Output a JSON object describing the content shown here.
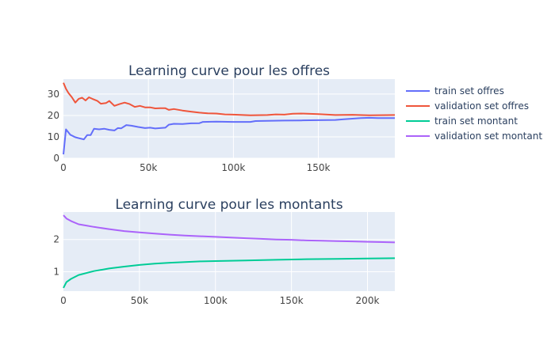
{
  "chart_data": [
    {
      "type": "line",
      "title": "Learning curve pour les offres",
      "xlabel": "",
      "ylabel": "",
      "xlim": [
        0,
        195000
      ],
      "ylim": [
        0,
        37
      ],
      "grid": true,
      "x_ticks": [
        {
          "value": 0,
          "label": "0"
        },
        {
          "value": 50000,
          "label": "50k"
        },
        {
          "value": 100000,
          "label": "100k"
        },
        {
          "value": 150000,
          "label": "150k"
        }
      ],
      "y_ticks": [
        {
          "value": 0,
          "label": "0"
        },
        {
          "value": 10,
          "label": "10"
        },
        {
          "value": 20,
          "label": "20"
        },
        {
          "value": 30,
          "label": "30"
        }
      ],
      "series": [
        {
          "name": "train set offres",
          "color": "#636efa",
          "x": [
            0,
            1500,
            4000,
            7000,
            10000,
            12000,
            14000,
            16000,
            18000,
            21000,
            24000,
            27000,
            30000,
            32000,
            34000,
            37000,
            40000,
            44000,
            48000,
            51000,
            54000,
            57000,
            60000,
            62000,
            65000,
            70000,
            75000,
            80000,
            82000,
            90000,
            100000,
            110000,
            113000,
            120000,
            130000,
            140000,
            150000,
            160000,
            165000,
            170000,
            175000,
            180000,
            185000,
            195000
          ],
          "values": [
            1.8,
            13.5,
            11,
            9.8,
            9.2,
            8.8,
            10.8,
            10.8,
            13.8,
            13.5,
            13.8,
            13.3,
            13.0,
            14.1,
            14.0,
            15.5,
            15.2,
            14.6,
            14.1,
            14.3,
            13.9,
            14.1,
            14.3,
            15.7,
            16.1,
            16.0,
            16.3,
            16.4,
            17.0,
            17.1,
            17.0,
            17.0,
            17.4,
            17.5,
            17.6,
            17.7,
            17.8,
            17.9,
            18.2,
            18.5,
            18.8,
            18.9,
            18.8,
            18.8
          ]
        },
        {
          "name": "validation set offres",
          "color": "#ef553b",
          "x": [
            0,
            1500,
            3000,
            5000,
            7000,
            9000,
            11000,
            13000,
            15000,
            17000,
            20000,
            22000,
            25000,
            27000,
            30000,
            33000,
            36000,
            39000,
            42000,
            45000,
            48000,
            51000,
            54000,
            57000,
            60000,
            62000,
            65000,
            70000,
            75000,
            80000,
            85000,
            90000,
            95000,
            100000,
            110000,
            120000,
            125000,
            130000,
            135000,
            140000,
            150000,
            160000,
            170000,
            180000,
            195000
          ],
          "values": [
            35.3,
            32.5,
            30.5,
            28.5,
            26.0,
            27.8,
            28.3,
            27.0,
            28.5,
            27.8,
            26.8,
            25.5,
            25.8,
            26.8,
            24.5,
            25.3,
            26.0,
            25.3,
            24.0,
            24.5,
            23.8,
            23.8,
            23.3,
            23.4,
            23.4,
            22.6,
            23.0,
            22.3,
            21.8,
            21.3,
            21.0,
            20.9,
            20.5,
            20.4,
            20.1,
            20.2,
            20.5,
            20.4,
            20.8,
            20.9,
            20.6,
            20.2,
            20.3,
            20.1,
            20.2
          ]
        }
      ]
    },
    {
      "type": "line",
      "title": "Learning curve pour les montants",
      "xlabel": "",
      "ylabel": "",
      "xlim": [
        0,
        218000
      ],
      "ylim": [
        0.4,
        2.85
      ],
      "grid": true,
      "x_ticks": [
        {
          "value": 0,
          "label": "0"
        },
        {
          "value": 50000,
          "label": "50k"
        },
        {
          "value": 100000,
          "label": "100k"
        },
        {
          "value": 150000,
          "label": "150k"
        },
        {
          "value": 200000,
          "label": "200k"
        }
      ],
      "y_ticks": [
        {
          "value": 1,
          "label": "1"
        },
        {
          "value": 2,
          "label": "2"
        }
      ],
      "series": [
        {
          "name": "train set montant",
          "color": "#00cc96",
          "x": [
            0,
            2000,
            5000,
            10000,
            20000,
            30000,
            40000,
            50000,
            60000,
            70000,
            80000,
            90000,
            100000,
            120000,
            140000,
            160000,
            180000,
            200000,
            218000
          ],
          "values": [
            0.5,
            0.68,
            0.78,
            0.9,
            1.02,
            1.1,
            1.16,
            1.21,
            1.25,
            1.28,
            1.3,
            1.32,
            1.33,
            1.35,
            1.37,
            1.39,
            1.4,
            1.41,
            1.42
          ]
        },
        {
          "name": "validation set montant",
          "color": "#ab63fa",
          "x": [
            0,
            2000,
            5000,
            10000,
            15000,
            20000,
            30000,
            40000,
            50000,
            60000,
            70000,
            80000,
            90000,
            100000,
            110000,
            120000,
            130000,
            140000,
            150000,
            160000,
            170000,
            180000,
            190000,
            200000,
            210000,
            218000
          ],
          "values": [
            2.75,
            2.65,
            2.57,
            2.47,
            2.43,
            2.39,
            2.32,
            2.26,
            2.22,
            2.18,
            2.15,
            2.12,
            2.1,
            2.08,
            2.06,
            2.04,
            2.02,
            2.0,
            1.99,
            1.97,
            1.96,
            1.95,
            1.94,
            1.93,
            1.92,
            1.91
          ]
        }
      ]
    }
  ],
  "legend": {
    "placement": "top-right",
    "items": [
      {
        "label": "train set offres",
        "color": "#636efa"
      },
      {
        "label": "validation set offres",
        "color": "#ef553b"
      },
      {
        "label": "train set montant",
        "color": "#00cc96"
      },
      {
        "label": "validation set montant",
        "color": "#ab63fa"
      }
    ]
  },
  "colors": {
    "plot_bg": "#e5ecf6",
    "grid": "#ffffff",
    "text": "#2a3f5f",
    "tick_text": "#444444"
  }
}
